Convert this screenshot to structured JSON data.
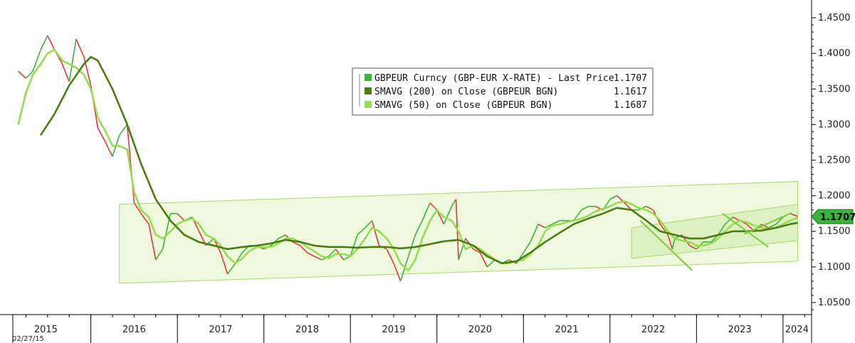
{
  "chart_data": {
    "type": "line",
    "start_date_label": "02/27/15",
    "x_ticks": [
      "2015",
      "2016",
      "2017",
      "2018",
      "2019",
      "2020",
      "2021",
      "2022",
      "2023",
      "2024"
    ],
    "y_ticks": [
      "1.4500",
      "1.4000",
      "1.3500",
      "1.3000",
      "1.2500",
      "1.2000",
      "1.1500",
      "1.1000",
      "1.0500"
    ],
    "ylim": [
      1.04,
      1.46
    ],
    "last_price_tag": "1.1707",
    "legend": [
      {
        "label": "GBPEUR Curncy (GBP-EUR X-RATE) - Last Price",
        "value": "1.1707",
        "color": "#3cb43c"
      },
      {
        "label": "SMAVG (200)  on Close (GBPEUR BGN)",
        "value": "1.1617",
        "color": "#4b7d14"
      },
      {
        "label": "SMAVG (50)  on Close (GBPEUR BGN)",
        "value": "1.1687",
        "color": "#96dc50"
      }
    ],
    "series": [
      {
        "name": "GBPEUR Curncy (GBP-EUR X-RATE) - Last Price",
        "x": [
          2015.16,
          2015.25,
          2015.33,
          2015.42,
          2015.5,
          2015.58,
          2015.67,
          2015.75,
          2015.83,
          2015.92,
          2016.0,
          2016.08,
          2016.17,
          2016.25,
          2016.33,
          2016.42,
          2016.5,
          2016.58,
          2016.67,
          2016.75,
          2016.83,
          2016.92,
          2017.0,
          2017.08,
          2017.17,
          2017.25,
          2017.33,
          2017.42,
          2017.5,
          2017.58,
          2017.67,
          2017.75,
          2017.83,
          2017.92,
          2018.0,
          2018.08,
          2018.17,
          2018.25,
          2018.33,
          2018.42,
          2018.5,
          2018.58,
          2018.67,
          2018.75,
          2018.83,
          2018.92,
          2019.0,
          2019.08,
          2019.17,
          2019.25,
          2019.33,
          2019.42,
          2019.5,
          2019.58,
          2019.67,
          2019.75,
          2019.83,
          2019.92,
          2020.0,
          2020.08,
          2020.17,
          2020.22,
          2020.25,
          2020.33,
          2020.42,
          2020.5,
          2020.58,
          2020.67,
          2020.75,
          2020.83,
          2020.92,
          2021.0,
          2021.08,
          2021.17,
          2021.25,
          2021.33,
          2021.42,
          2021.5,
          2021.58,
          2021.67,
          2021.75,
          2021.83,
          2021.92,
          2022.0,
          2022.08,
          2022.17,
          2022.25,
          2022.33,
          2022.42,
          2022.5,
          2022.58,
          2022.67,
          2022.72,
          2022.75,
          2022.83,
          2022.92,
          2023.0,
          2023.08,
          2023.17,
          2023.25,
          2023.33,
          2023.42,
          2023.5,
          2023.58,
          2023.67,
          2023.75,
          2023.83,
          2023.92,
          2024.0,
          2024.08,
          2024.17
        ],
        "values": [
          1.375,
          1.365,
          1.375,
          1.405,
          1.425,
          1.405,
          1.385,
          1.36,
          1.42,
          1.395,
          1.355,
          1.295,
          1.275,
          1.255,
          1.285,
          1.3,
          1.19,
          1.175,
          1.16,
          1.11,
          1.125,
          1.175,
          1.175,
          1.165,
          1.17,
          1.15,
          1.13,
          1.14,
          1.12,
          1.09,
          1.105,
          1.12,
          1.13,
          1.13,
          1.125,
          1.13,
          1.14,
          1.145,
          1.135,
          1.13,
          1.12,
          1.115,
          1.11,
          1.115,
          1.125,
          1.11,
          1.115,
          1.145,
          1.155,
          1.165,
          1.13,
          1.125,
          1.105,
          1.08,
          1.115,
          1.145,
          1.165,
          1.19,
          1.18,
          1.16,
          1.185,
          1.195,
          1.11,
          1.14,
          1.125,
          1.12,
          1.1,
          1.11,
          1.105,
          1.11,
          1.105,
          1.12,
          1.135,
          1.16,
          1.155,
          1.16,
          1.165,
          1.165,
          1.165,
          1.18,
          1.185,
          1.185,
          1.18,
          1.195,
          1.2,
          1.19,
          1.18,
          1.18,
          1.185,
          1.18,
          1.16,
          1.145,
          1.125,
          1.14,
          1.145,
          1.13,
          1.125,
          1.135,
          1.135,
          1.145,
          1.16,
          1.17,
          1.165,
          1.16,
          1.15,
          1.16,
          1.155,
          1.16,
          1.17,
          1.175,
          1.171
        ]
      },
      {
        "name": "SMAVG (200)  on Close (GBPEUR BGN)",
        "x": [
          2015.42,
          2015.58,
          2015.75,
          2015.92,
          2016.0,
          2016.08,
          2016.25,
          2016.42,
          2016.58,
          2016.75,
          2016.92,
          2017.08,
          2017.25,
          2017.42,
          2017.58,
          2017.75,
          2017.92,
          2018.08,
          2018.25,
          2018.42,
          2018.58,
          2018.75,
          2018.92,
          2019.08,
          2019.25,
          2019.42,
          2019.58,
          2019.75,
          2019.92,
          2020.08,
          2020.25,
          2020.42,
          2020.58,
          2020.75,
          2020.92,
          2021.08,
          2021.25,
          2021.42,
          2021.58,
          2021.75,
          2021.92,
          2022.08,
          2022.25,
          2022.42,
          2022.58,
          2022.75,
          2022.92,
          2023.08,
          2023.25,
          2023.42,
          2023.58,
          2023.75,
          2023.92,
          2024.08,
          2024.17
        ],
        "values": [
          1.285,
          1.315,
          1.355,
          1.385,
          1.395,
          1.39,
          1.35,
          1.3,
          1.245,
          1.195,
          1.165,
          1.145,
          1.135,
          1.13,
          1.125,
          1.128,
          1.13,
          1.133,
          1.138,
          1.135,
          1.13,
          1.128,
          1.128,
          1.127,
          1.128,
          1.128,
          1.126,
          1.128,
          1.132,
          1.136,
          1.138,
          1.13,
          1.115,
          1.105,
          1.108,
          1.12,
          1.135,
          1.148,
          1.16,
          1.168,
          1.175,
          1.183,
          1.18,
          1.165,
          1.15,
          1.145,
          1.14,
          1.14,
          1.145,
          1.15,
          1.15,
          1.151,
          1.155,
          1.16,
          1.162
        ]
      },
      {
        "name": "SMAVG (50)  on Close (GBPEUR BGN)",
        "x": [
          2015.16,
          2015.25,
          2015.33,
          2015.42,
          2015.5,
          2015.58,
          2015.67,
          2015.75,
          2015.83,
          2015.92,
          2016.0,
          2016.08,
          2016.17,
          2016.25,
          2016.33,
          2016.42,
          2016.5,
          2016.58,
          2016.67,
          2016.75,
          2016.83,
          2016.92,
          2017.0,
          2017.08,
          2017.17,
          2017.25,
          2017.33,
          2017.42,
          2017.5,
          2017.58,
          2017.67,
          2017.75,
          2017.83,
          2017.92,
          2018.0,
          2018.08,
          2018.17,
          2018.25,
          2018.33,
          2018.42,
          2018.5,
          2018.58,
          2018.67,
          2018.75,
          2018.83,
          2018.92,
          2019.0,
          2019.08,
          2019.17,
          2019.25,
          2019.33,
          2019.42,
          2019.5,
          2019.58,
          2019.67,
          2019.75,
          2019.83,
          2019.92,
          2020.0,
          2020.08,
          2020.17,
          2020.25,
          2020.33,
          2020.42,
          2020.5,
          2020.58,
          2020.67,
          2020.75,
          2020.83,
          2020.92,
          2021.0,
          2021.08,
          2021.17,
          2021.25,
          2021.33,
          2021.42,
          2021.5,
          2021.58,
          2021.67,
          2021.75,
          2021.83,
          2021.92,
          2022.0,
          2022.08,
          2022.17,
          2022.25,
          2022.33,
          2022.42,
          2022.5,
          2022.58,
          2022.67,
          2022.75,
          2022.83,
          2022.92,
          2023.0,
          2023.08,
          2023.17,
          2023.25,
          2023.33,
          2023.42,
          2023.5,
          2023.58,
          2023.67,
          2023.75,
          2023.83,
          2023.92,
          2024.0,
          2024.08,
          2024.17
        ],
        "values": [
          1.3,
          1.345,
          1.37,
          1.385,
          1.4,
          1.405,
          1.39,
          1.385,
          1.38,
          1.37,
          1.35,
          1.31,
          1.29,
          1.27,
          1.27,
          1.265,
          1.205,
          1.18,
          1.17,
          1.145,
          1.14,
          1.15,
          1.16,
          1.165,
          1.168,
          1.16,
          1.145,
          1.14,
          1.13,
          1.115,
          1.105,
          1.112,
          1.122,
          1.128,
          1.128,
          1.128,
          1.133,
          1.14,
          1.14,
          1.135,
          1.128,
          1.122,
          1.115,
          1.112,
          1.118,
          1.118,
          1.115,
          1.125,
          1.14,
          1.155,
          1.15,
          1.14,
          1.125,
          1.105,
          1.095,
          1.11,
          1.14,
          1.165,
          1.18,
          1.17,
          1.165,
          1.15,
          1.125,
          1.13,
          1.125,
          1.118,
          1.11,
          1.105,
          1.105,
          1.108,
          1.11,
          1.118,
          1.13,
          1.15,
          1.158,
          1.16,
          1.163,
          1.165,
          1.168,
          1.172,
          1.178,
          1.182,
          1.185,
          1.19,
          1.192,
          1.188,
          1.183,
          1.18,
          1.175,
          1.165,
          1.15,
          1.14,
          1.137,
          1.135,
          1.13,
          1.13,
          1.133,
          1.14,
          1.15,
          1.16,
          1.165,
          1.163,
          1.158,
          1.155,
          1.153,
          1.155,
          1.16,
          1.165,
          1.169
        ]
      }
    ],
    "channel_wide": {
      "x": [
        2016.33,
        2024.17
      ],
      "upper": [
        1.188,
        1.22
      ],
      "lower": [
        1.077,
        1.108
      ]
    },
    "channel_inner": {
      "x": [
        2022.25,
        2024.17
      ],
      "upper": [
        1.155,
        1.188
      ],
      "lower": [
        1.112,
        1.137
      ]
    },
    "trend_lines": [
      {
        "x": [
          2022.35,
          2022.95
        ],
        "y": [
          1.165,
          1.095
        ]
      },
      {
        "x": [
          2023.3,
          2023.83
        ],
        "y": [
          1.175,
          1.128
        ]
      },
      {
        "x": [
          2023.55,
          2024.1
        ],
        "y": [
          1.146,
          1.176
        ]
      }
    ]
  }
}
